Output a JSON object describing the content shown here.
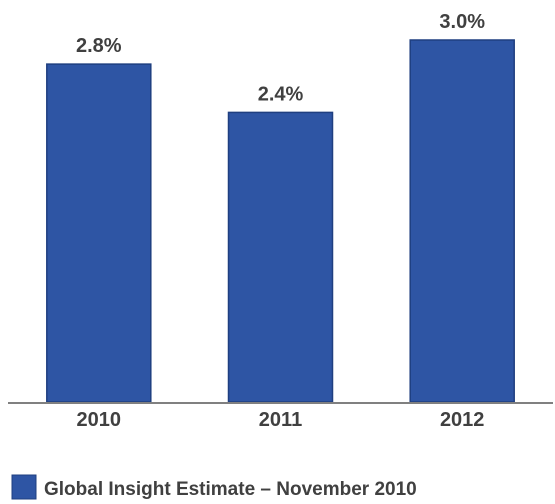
{
  "chart_data": {
    "type": "bar",
    "categories": [
      "2010",
      "2011",
      "2012"
    ],
    "series": [
      {
        "name": "Global Insight Estimate – November 2010",
        "values": [
          2.8,
          2.4,
          3.0
        ],
        "labels": [
          "2.8%",
          "2.4%",
          "3.0%"
        ]
      }
    ],
    "title": "",
    "xlabel": "",
    "ylabel": "",
    "ylim": [
      0,
      3.0
    ],
    "grid": false,
    "legend_position": "bottom-left",
    "bar_color": "#2E55A4",
    "bar_border_color": "#1F3F80",
    "axis_color": "#808080",
    "text_color": "#404040"
  }
}
